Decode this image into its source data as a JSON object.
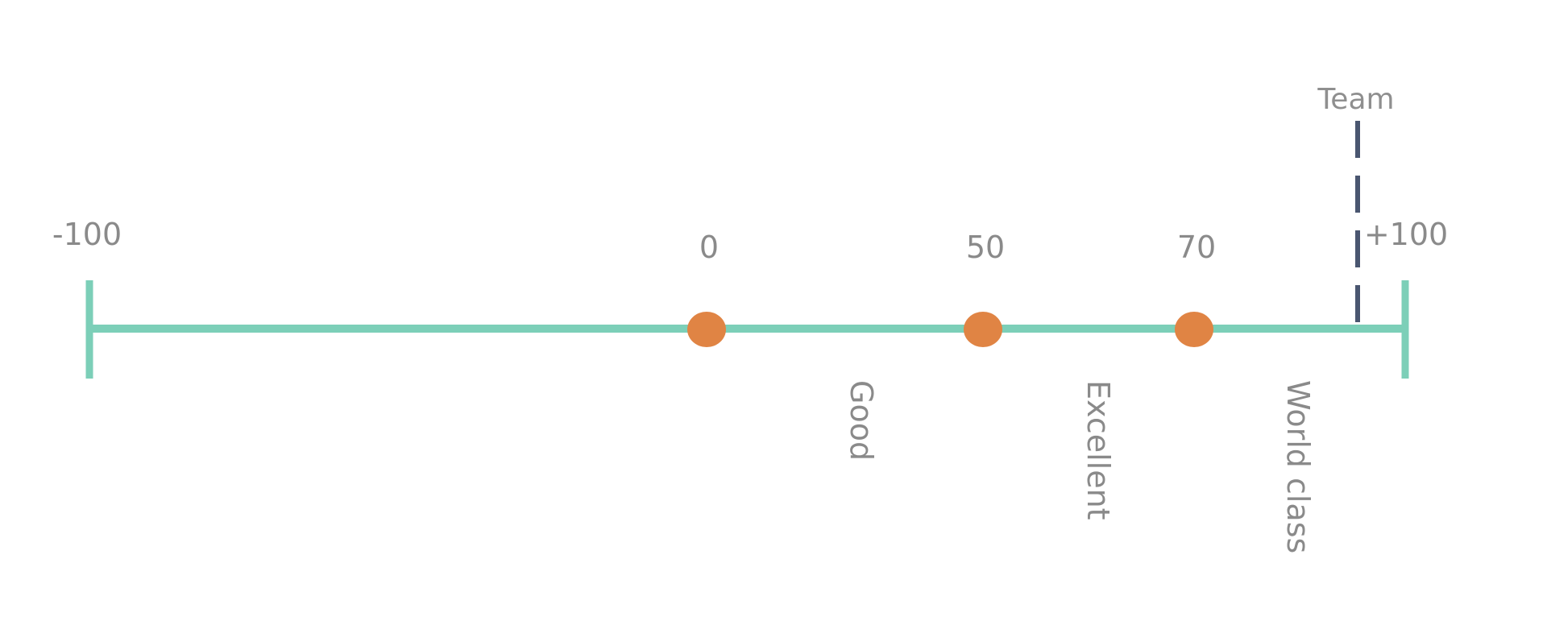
{
  "scale": {
    "min_label": "-100",
    "max_label": "+100",
    "min": -100,
    "max": 100,
    "line_color": "#7ccfb8",
    "marker_color": "#e08444"
  },
  "markers": [
    {
      "value": 0,
      "label": "0"
    },
    {
      "value": 50,
      "label": "50"
    },
    {
      "value": 70,
      "label": "70"
    }
  ],
  "bands": [
    {
      "label": "Good"
    },
    {
      "label": "Excellent"
    },
    {
      "label": "World class"
    }
  ],
  "team": {
    "label": "Team",
    "value": 93,
    "line_color": "#4a5670"
  }
}
